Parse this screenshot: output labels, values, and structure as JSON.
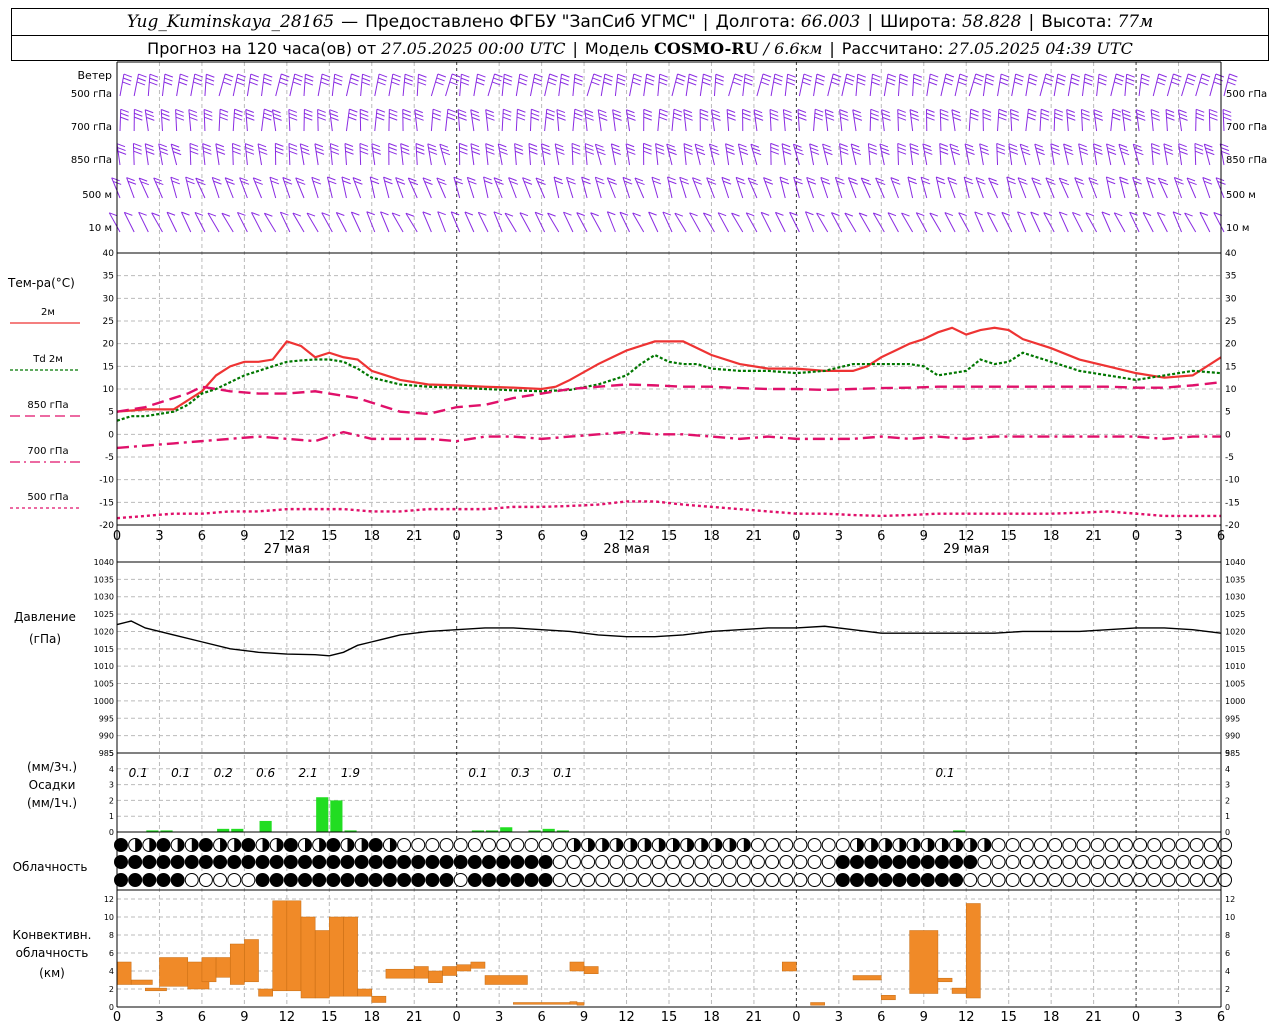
{
  "header": {
    "station": "Yug_Kuminskaya_28165",
    "provider": "Предоставлено ФГБУ \"ЗапСиб УГМС\"",
    "lon_label": "Долгота:",
    "lon": "66.003",
    "lat_label": "Широта:",
    "lat": "58.828",
    "alt_label": "Высота:",
    "alt": "77м",
    "forecast_label": "Прогноз на 120 часа(ов) от",
    "forecast_time": "27.05.2025 00:00 UTC",
    "model_label": "Модель",
    "model": "COSMO-RU",
    "model_res": "/ 6.6км",
    "calc_label": "Рассчитано:",
    "calc_time": "27.05.2025 04:39 UTC"
  },
  "wind": {
    "title": "Ветер",
    "levels": [
      "500 гПа",
      "700 гПа",
      "850 гПа",
      "500 м",
      "10 м"
    ],
    "color": "#8a2be2"
  },
  "temp": {
    "title": "Тем-ра(°С)",
    "legend": [
      {
        "label": "2м",
        "color": "#ee3333",
        "style": "solid"
      },
      {
        "label": "Td 2м",
        "color": "#007700",
        "style": "dot"
      },
      {
        "label": "850 гПа",
        "color": "#e0106a",
        "style": "dash"
      },
      {
        "label": "700 гПа",
        "color": "#e0106a",
        "style": "dashdot"
      },
      {
        "label": "500 гПа",
        "color": "#e0106a",
        "style": "dotted"
      }
    ]
  },
  "pressure": {
    "title1": "Давление",
    "title2": "(гПа)"
  },
  "precip": {
    "title1": "(мм/3ч.)",
    "title2": "Осадки",
    "title3": "(мм/1ч.)",
    "labels": [
      {
        "t": 1.5,
        "v": "0.1"
      },
      {
        "t": 4.5,
        "v": "0.1"
      },
      {
        "t": 7.5,
        "v": "0.2"
      },
      {
        "t": 10.5,
        "v": "0.6"
      },
      {
        "t": 13.5,
        "v": "2.1"
      },
      {
        "t": 16.5,
        "v": "1.9"
      },
      {
        "t": 25.5,
        "v": "0.1"
      },
      {
        "t": 28.5,
        "v": "0.3"
      },
      {
        "t": 31.5,
        "v": "0.1"
      },
      {
        "t": 58.5,
        "v": "0.1"
      }
    ]
  },
  "cloud": {
    "title": "Облачность"
  },
  "conv": {
    "title1": "Конвективн.",
    "title2": "облачность",
    "title3": "(км)"
  },
  "dates": [
    "27 мая",
    "28 мая",
    "29 мая"
  ],
  "hour_ticks": [
    "0",
    "3",
    "6",
    "9",
    "12",
    "15",
    "18",
    "21",
    "0",
    "3",
    "6",
    "9",
    "12",
    "15",
    "18",
    "21",
    "0",
    "3",
    "6",
    "9",
    "12",
    "15",
    "18",
    "21",
    "0",
    "3",
    "6"
  ],
  "chart_data": [
    {
      "type": "line",
      "title": "Тем-ра(°С)",
      "x_unit": "hours from 27.05.2025 00:00 UTC",
      "ylim": [
        -20,
        40
      ],
      "series": [
        {
          "name": "2м",
          "x": [
            0,
            2,
            4,
            6,
            7,
            8,
            9,
            10,
            11,
            12,
            13,
            14,
            15,
            16,
            17,
            18,
            20,
            22,
            24,
            26,
            28,
            30,
            31,
            32,
            34,
            35,
            36,
            38,
            40,
            42,
            44,
            46,
            48,
            50,
            52,
            53,
            54,
            55,
            56,
            57,
            58,
            59,
            60,
            61,
            62,
            63,
            64,
            66,
            68,
            70,
            72,
            74,
            76,
            78
          ],
          "values": [
            5,
            5.5,
            5.5,
            9.5,
            13,
            15,
            16,
            16,
            16.5,
            20.5,
            19.5,
            17,
            18,
            17,
            16.5,
            14,
            12,
            11,
            10.8,
            10.5,
            10.3,
            10,
            10.5,
            12,
            15.5,
            17,
            18.5,
            20.5,
            20.5,
            17.5,
            15.5,
            14.5,
            14.5,
            14,
            14,
            15,
            17,
            18.5,
            20,
            21,
            22.5,
            23.5,
            22,
            23,
            23.5,
            23,
            21,
            19,
            16.5,
            15,
            13.5,
            12.5,
            13,
            17
          ]
        },
        {
          "name": "Td 2м",
          "x": [
            0,
            1,
            2,
            4,
            5,
            6,
            7,
            8,
            9,
            10,
            11,
            12,
            13,
            14,
            15,
            16,
            17,
            18,
            20,
            22,
            24,
            26,
            28,
            30,
            32,
            34,
            35,
            36,
            37,
            38,
            39,
            40,
            41,
            42,
            44,
            46,
            48,
            50,
            52,
            54,
            56,
            57,
            58,
            59,
            60,
            61,
            62,
            63,
            64,
            66,
            68,
            70,
            72,
            74,
            76,
            78
          ],
          "values": [
            3,
            4,
            4,
            5,
            6.5,
            9,
            10,
            11.5,
            13,
            14,
            15,
            16,
            16.3,
            16.5,
            16.5,
            16,
            14.5,
            12.5,
            11,
            10.5,
            10.3,
            10,
            9.7,
            9.5,
            9.8,
            11,
            12,
            13,
            15.5,
            17.5,
            16,
            15.5,
            15.5,
            14.5,
            14,
            14,
            13.5,
            14,
            15.5,
            15.5,
            15.5,
            15,
            13,
            13.5,
            14,
            16.5,
            15.5,
            16,
            18,
            16,
            14,
            13,
            12,
            13,
            14,
            13.5
          ]
        },
        {
          "name": "850 гПа",
          "x": [
            0,
            2,
            3,
            4,
            5,
            6,
            8,
            10,
            12,
            14,
            15,
            17,
            18,
            20,
            22,
            24,
            26,
            28,
            30,
            32,
            34,
            36,
            38,
            40,
            42,
            44,
            46,
            48,
            50,
            52,
            54,
            56,
            58,
            60,
            62,
            64,
            66,
            68,
            70,
            72,
            74,
            76,
            78
          ],
          "values": [
            5,
            6,
            7,
            8,
            9,
            10.5,
            9.5,
            9,
            9,
            9.5,
            9,
            8,
            7,
            5,
            4.5,
            6,
            6.5,
            8,
            9,
            10,
            10.5,
            11,
            10.8,
            10.5,
            10.5,
            10.2,
            10,
            10,
            9.8,
            10,
            10.2,
            10.3,
            10.5,
            10.5,
            10.5,
            10.5,
            10.5,
            10.5,
            10.5,
            10.3,
            10.3,
            10.8,
            11.5
          ]
        },
        {
          "name": "700 гПа",
          "x": [
            0,
            2,
            4,
            6,
            8,
            10,
            12,
            14,
            16,
            18,
            20,
            22,
            24,
            26,
            28,
            30,
            32,
            34,
            36,
            38,
            40,
            42,
            44,
            46,
            48,
            50,
            52,
            54,
            56,
            58,
            60,
            62,
            64,
            66,
            68,
            70,
            72,
            74,
            76,
            78
          ],
          "values": [
            -3,
            -2.5,
            -2,
            -1.5,
            -1,
            -0.5,
            -1,
            -1.5,
            0.5,
            -1,
            -1,
            -1,
            -1.5,
            -0.5,
            -0.5,
            -1,
            -0.5,
            0,
            0.5,
            0,
            0,
            -0.5,
            -1,
            -0.5,
            -1,
            -1,
            -1,
            -0.5,
            -1,
            -0.5,
            -1,
            -0.5,
            -0.5,
            -0.5,
            -0.5,
            -0.5,
            -0.5,
            -1,
            -0.5,
            -0.5
          ]
        },
        {
          "name": "500 гПа",
          "x": [
            0,
            2,
            4,
            6,
            8,
            10,
            12,
            14,
            16,
            18,
            20,
            22,
            24,
            26,
            28,
            30,
            32,
            34,
            36,
            38,
            40,
            42,
            44,
            46,
            48,
            50,
            52,
            54,
            56,
            58,
            60,
            62,
            64,
            66,
            68,
            70,
            72,
            74,
            76,
            78
          ],
          "values": [
            -18.5,
            -18,
            -17.5,
            -17.5,
            -17,
            -17,
            -16.5,
            -16.5,
            -16.5,
            -17,
            -17,
            -16.5,
            -16.5,
            -16.5,
            -16,
            -16,
            -15.8,
            -15.5,
            -14.8,
            -14.8,
            -15.5,
            -16,
            -16.5,
            -17,
            -17.5,
            -17.5,
            -17.8,
            -18,
            -17.8,
            -17.5,
            -17.5,
            -17.5,
            -17.5,
            -17.5,
            -17.3,
            -17,
            -17.5,
            -18,
            -18,
            -18
          ]
        }
      ]
    },
    {
      "type": "line",
      "title": "Давление",
      "ylabel": "(гПа)",
      "ylim": [
        985,
        1040
      ],
      "series": [
        {
          "name": "",
          "x": [
            0,
            1,
            2,
            3,
            4,
            6,
            8,
            10,
            12,
            14,
            15,
            16,
            17,
            18,
            20,
            22,
            24,
            26,
            28,
            30,
            32,
            34,
            36,
            38,
            40,
            42,
            44,
            46,
            48,
            50,
            52,
            54,
            56,
            58,
            60,
            62,
            64,
            66,
            68,
            70,
            72,
            74,
            76,
            78
          ],
          "values": [
            1022,
            1023,
            1021,
            1020,
            1019,
            1017,
            1015,
            1014,
            1013.5,
            1013.3,
            1013,
            1014,
            1016,
            1017,
            1019,
            1020,
            1020.5,
            1021,
            1021,
            1020.5,
            1020,
            1019,
            1018.5,
            1018.5,
            1019,
            1020,
            1020.5,
            1021,
            1021,
            1021.5,
            1020.5,
            1019.5,
            1019.5,
            1019.5,
            1019.5,
            1019.5,
            1020,
            1020,
            1020,
            1020.5,
            1021,
            1021,
            1020.5,
            1019.5
          ]
        }
      ]
    },
    {
      "type": "bar",
      "title": "Осадки",
      "ylabel": "(мм/1ч.)",
      "ylim": [
        0,
        5
      ],
      "x": [
        2,
        3,
        7,
        8,
        10,
        14,
        15,
        16,
        25,
        26,
        27,
        29,
        30,
        31,
        59
      ],
      "values": [
        0.1,
        0.1,
        0.2,
        0.2,
        0.7,
        2.2,
        2.0,
        0.1,
        0.1,
        0.1,
        0.3,
        0.1,
        0.2,
        0.1,
        0.1
      ]
    },
    {
      "type": "bar",
      "title": "Конвективн. облачность",
      "ylabel": "(км)",
      "ylim": [
        0,
        13
      ],
      "bars": [
        [
          0,
          1,
          2.5,
          5
        ],
        [
          1,
          2.5,
          2.5,
          3
        ],
        [
          2,
          3.5,
          1.8,
          2.1
        ],
        [
          3,
          5,
          2.3,
          5.5
        ],
        [
          5,
          6.5,
          2,
          5
        ],
        [
          6,
          7,
          2.8,
          5.5
        ],
        [
          7,
          8,
          3.3,
          5.5
        ],
        [
          8,
          9,
          2.5,
          7
        ],
        [
          9,
          10,
          2.8,
          7.5
        ],
        [
          10,
          11,
          1.2,
          2
        ],
        [
          11,
          12,
          1.8,
          11.8
        ],
        [
          12,
          13,
          1.8,
          11.8
        ],
        [
          13,
          14,
          1,
          10
        ],
        [
          14,
          15,
          1,
          8.5
        ],
        [
          15,
          16,
          1.2,
          10
        ],
        [
          16,
          17,
          1.2,
          10
        ],
        [
          17,
          18,
          1.2,
          2
        ],
        [
          18,
          19,
          0.5,
          1.2
        ],
        [
          19,
          21,
          3.2,
          4.2
        ],
        [
          21,
          22,
          3.2,
          4.5
        ],
        [
          22,
          23,
          2.7,
          4
        ],
        [
          23,
          24,
          3.5,
          4.5
        ],
        [
          24,
          25,
          4,
          4.7
        ],
        [
          25,
          26,
          4.3,
          5
        ],
        [
          26,
          29,
          2.5,
          3.5
        ],
        [
          28,
          32,
          0.3,
          0.5
        ],
        [
          32,
          32.5,
          0.3,
          0.6
        ],
        [
          32.5,
          33,
          0.2,
          0.5
        ],
        [
          32,
          33,
          4,
          5
        ],
        [
          33,
          34,
          3.7,
          4.5
        ],
        [
          47,
          48,
          4,
          5
        ],
        [
          49,
          50,
          0.2,
          0.5
        ],
        [
          52,
          54,
          3,
          3.5
        ],
        [
          54,
          55,
          0.8,
          1.3
        ],
        [
          56,
          58,
          1.5,
          8.5
        ],
        [
          58,
          59,
          2.8,
          3.2
        ],
        [
          59,
          60,
          1.5,
          2.1
        ],
        [
          60,
          61,
          1,
          11.5
        ]
      ]
    }
  ]
}
